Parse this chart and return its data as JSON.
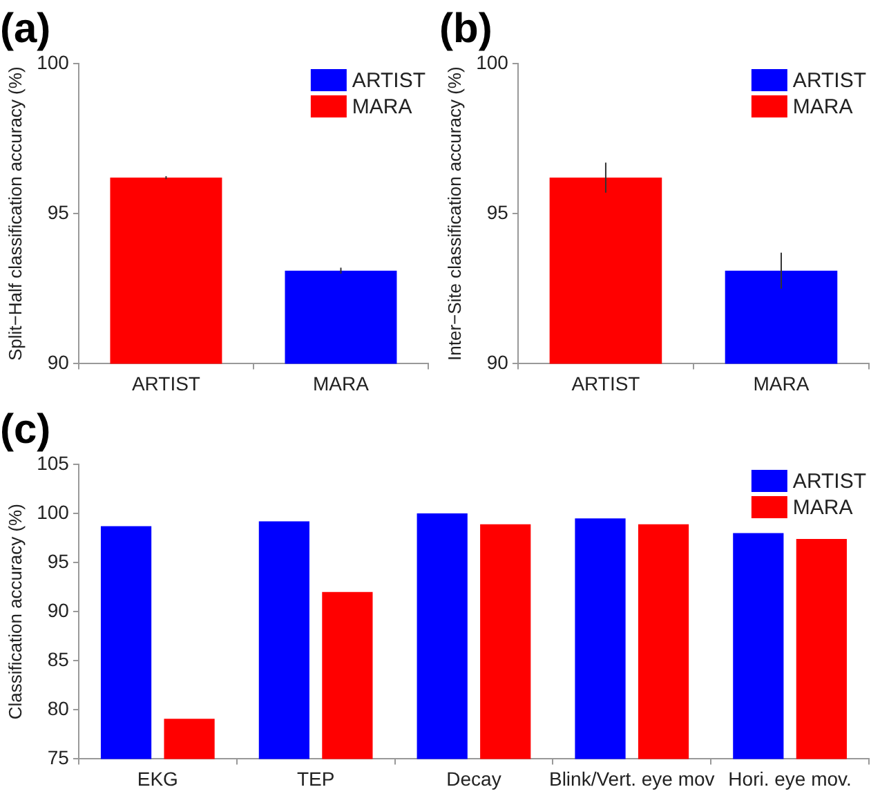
{
  "chart_data": [
    {
      "type": "bar",
      "title": "(a)",
      "ylabel": "Split−Half classification accuracy (%)",
      "categories": [
        "ARTIST",
        "MARA"
      ],
      "series": [
        {
          "name": "ARTIST",
          "color": "#0000ff",
          "values": [
            null,
            93.1
          ],
          "errors": [
            null,
            0.1
          ]
        },
        {
          "name": "MARA",
          "color": "#ff0000",
          "values": [
            96.2,
            null
          ],
          "errors": [
            0.05,
            null
          ]
        }
      ],
      "ylim": [
        90,
        100
      ],
      "yticks": [
        90,
        95,
        100
      ],
      "grid": false,
      "legend": "top right"
    },
    {
      "type": "bar",
      "title": "(b)",
      "ylabel": "Inter−Site classification accuracy (%)",
      "categories": [
        "ARTIST",
        "MARA"
      ],
      "series": [
        {
          "name": "ARTIST",
          "color": "#0000ff",
          "values": [
            null,
            93.1
          ],
          "errors": [
            null,
            0.6
          ]
        },
        {
          "name": "MARA",
          "color": "#ff0000",
          "values": [
            96.2,
            null
          ],
          "errors": [
            0.5,
            null
          ]
        }
      ],
      "ylim": [
        90,
        100
      ],
      "yticks": [
        90,
        95,
        100
      ],
      "grid": false,
      "legend": "top right"
    },
    {
      "type": "bar",
      "title": "(c)",
      "ylabel": "Classification accuracy (%)",
      "categories": [
        "EKG",
        "TEP",
        "Decay",
        "Blink/Vert. eye mov",
        "Hori. eye mov."
      ],
      "series": [
        {
          "name": "ARTIST",
          "color": "#0000ff",
          "values": [
            98.7,
            99.2,
            100,
            99.5,
            98.0
          ]
        },
        {
          "name": "MARA",
          "color": "#ff0000",
          "values": [
            79.1,
            92.0,
            98.9,
            98.9,
            97.4
          ]
        }
      ],
      "ylim": [
        75,
        105
      ],
      "yticks": [
        75,
        80,
        85,
        90,
        95,
        100,
        105
      ],
      "grid": false,
      "legend": "top right"
    }
  ]
}
